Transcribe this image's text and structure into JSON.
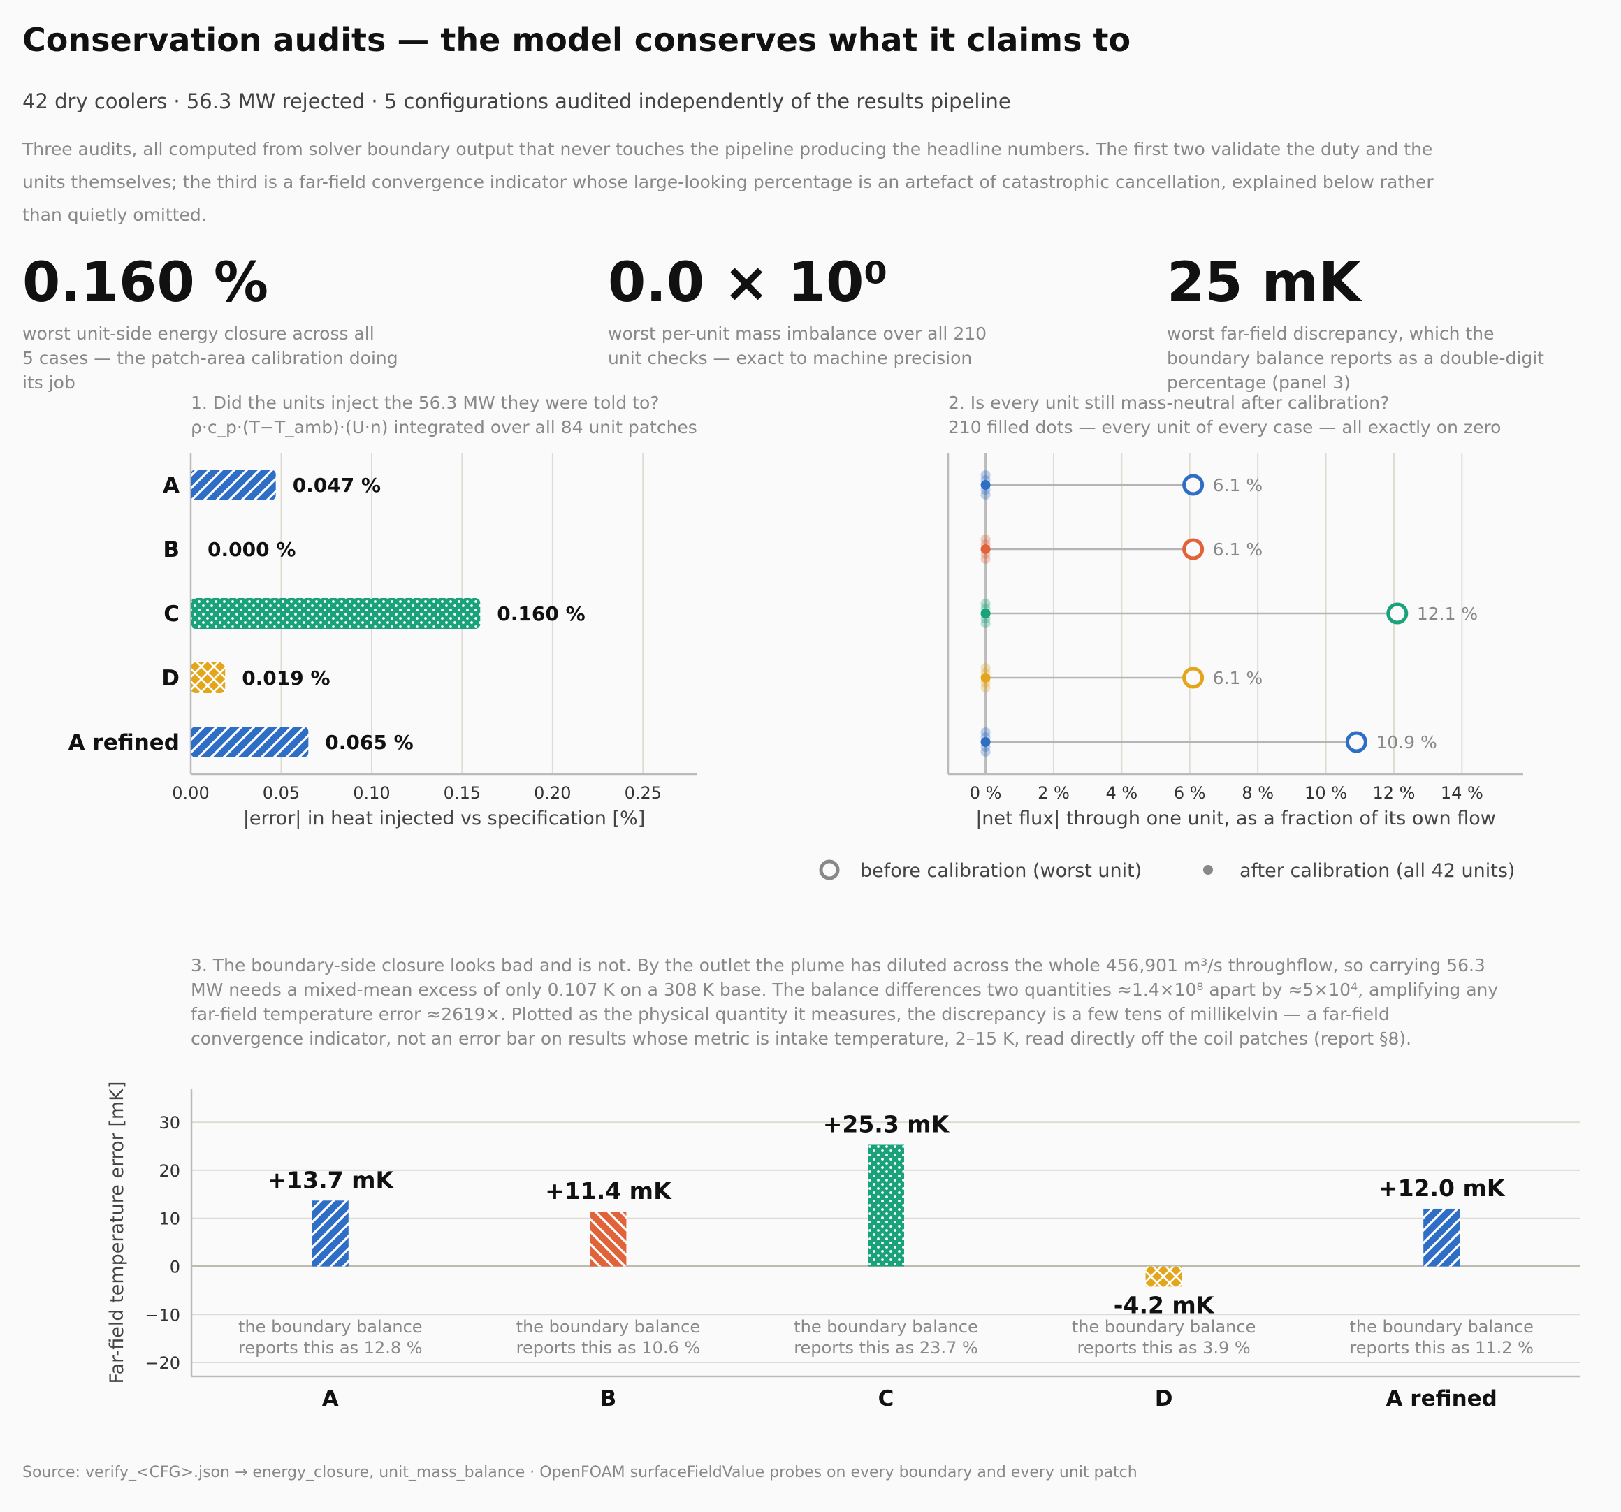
{
  "header": {
    "title": "Conservation audits — the model conserves what it claims to",
    "subtitle": "42 dry coolers · 56.3 MW rejected · 5 configurations audited independently of the results pipeline",
    "intro": "Three audits, all computed from solver boundary output that never touches the pipeline producing the headline numbers. The first two validate the duty and the units themselves; the third is a far-field convergence indicator whose large-looking percentage is an artefact of catastrophic cancellation, explained below rather than quietly omitted."
  },
  "kpis": [
    {
      "value": "0.160 %",
      "desc_lines": [
        "worst unit-side energy closure across all",
        "5 cases — the patch-area calibration doing",
        "its job"
      ]
    },
    {
      "value": "0.0 × 10⁰",
      "desc_lines": [
        "worst per-unit mass imbalance over all 210",
        "unit checks — exact to machine precision"
      ]
    },
    {
      "value": "25 mK",
      "desc_lines": [
        "worst far-field discrepancy, which the",
        "boundary balance reports as a double-digit",
        "percentage (panel 3)"
      ]
    }
  ],
  "colors": {
    "A": "#2f6ec5",
    "B": "#e0633a",
    "C": "#1aa37a",
    "D": "#e3a51c",
    "grid": "#dedbd2",
    "axis": "#bbbbbb",
    "muted": "#888888"
  },
  "panel1": {
    "title_line1": "1.  Did the units inject the 56.3 MW they were told to?",
    "title_line2": "ρ·c_p·(T−T_amb)·(U·n) integrated over all 84 unit patches"
  },
  "panel2": {
    "title_line1": "2.  Is every unit still mass-neutral after calibration?",
    "title_line2": "210 filled dots — every unit of every case — all exactly on zero",
    "legend_before": "before calibration (worst unit)",
    "legend_after": "after calibration (all 42 units)"
  },
  "panel3": {
    "text": "3. The boundary-side closure looks bad and is not. By the outlet the plume has diluted across the whole 456,901 m³/s throughflow, so carrying 56.3 MW needs a mixed-mean excess of only 0.107 K on a 308 K base. The balance differences two quantities ≈1.4×10⁸ apart by ≈5×10⁴, amplifying any far-field temperature error ≈2619×. Plotted as the physical quantity it measures, the discrepancy is a few tens of millikelvin — a far-field convergence indicator, not an error bar on results whose metric is intake temperature, 2–15 K, read directly off the coil patches (report §8)."
  },
  "chart_data": [
    {
      "type": "bar",
      "orientation": "horizontal",
      "categories": [
        "A",
        "B",
        "C",
        "D",
        "A refined"
      ],
      "values": [
        0.047,
        0.0,
        0.16,
        0.019,
        0.065
      ],
      "value_labels": [
        "0.047 %",
        "0.000 %",
        "0.160 %",
        "0.019 %",
        "0.065 %"
      ],
      "series_colors": [
        "A",
        "B",
        "C",
        "D",
        "A"
      ],
      "patterns": [
        "diag",
        "back",
        "dots",
        "cross",
        "diag"
      ],
      "xlabel": "|error| in heat injected vs specification  [%]",
      "xlim": [
        0,
        0.28
      ],
      "xticks": [
        0.0,
        0.05,
        0.1,
        0.15,
        0.2,
        0.25
      ],
      "xtick_labels": [
        "0.00",
        "0.05",
        "0.10",
        "0.15",
        "0.20",
        "0.25"
      ],
      "grid": true
    },
    {
      "type": "scatter",
      "orientation": "horizontal",
      "categories": [
        "A",
        "B",
        "C",
        "D",
        "A refined"
      ],
      "series": [
        {
          "name": "before calibration (worst unit)",
          "values": [
            6.1,
            6.1,
            12.1,
            6.1,
            10.9
          ]
        },
        {
          "name": "after calibration (all 42 units)",
          "values": [
            0,
            0,
            0,
            0,
            0
          ]
        }
      ],
      "value_labels": [
        "6.1 %",
        "6.1 %",
        "12.1 %",
        "6.1 %",
        "10.9 %"
      ],
      "series_colors": [
        "A",
        "B",
        "C",
        "D",
        "A"
      ],
      "xlabel": "|net flux| through one unit, as a fraction of its own flow",
      "xlim": [
        -1.1,
        15.8
      ],
      "xticks": [
        0,
        2,
        4,
        6,
        8,
        10,
        12,
        14
      ],
      "xtick_labels": [
        "0 %",
        "2 %",
        "4 %",
        "6 %",
        "8 %",
        "10 %",
        "12 %",
        "14 %"
      ],
      "grid": true,
      "legend": "bottom-right"
    },
    {
      "type": "bar",
      "categories": [
        "A",
        "B",
        "C",
        "D",
        "A refined"
      ],
      "values": [
        13.7,
        11.4,
        25.3,
        -4.2,
        12.0
      ],
      "value_labels": [
        "+13.7 mK",
        "+11.4 mK",
        "+25.3 mK",
        "-4.2 mK",
        "+12.0 mK"
      ],
      "notes_line1": [
        "the boundary balance",
        "the boundary balance",
        "the boundary balance",
        "the boundary balance",
        "the boundary balance"
      ],
      "notes_line2": [
        "reports this as 12.8 %",
        "reports this as 10.6 %",
        "reports this as 23.7 %",
        "reports this as 3.9 %",
        "reports this as 11.2 %"
      ],
      "series_colors": [
        "A",
        "B",
        "C",
        "D",
        "A"
      ],
      "patterns": [
        "diag",
        "back",
        "dots",
        "cross",
        "diag"
      ],
      "ylabel": "Far-field temperature error  [mK]",
      "ylim": [
        -22.9,
        37
      ],
      "yticks": [
        -20,
        -10,
        0,
        10,
        20,
        30
      ],
      "ytick_labels": [
        "−20",
        "−10",
        "0",
        "10",
        "20",
        "30"
      ],
      "grid": true
    }
  ],
  "footer": "Source: verify_<CFG>.json → energy_closure, unit_mass_balance   ·   OpenFOAM surfaceFieldValue probes on every boundary and every unit patch"
}
